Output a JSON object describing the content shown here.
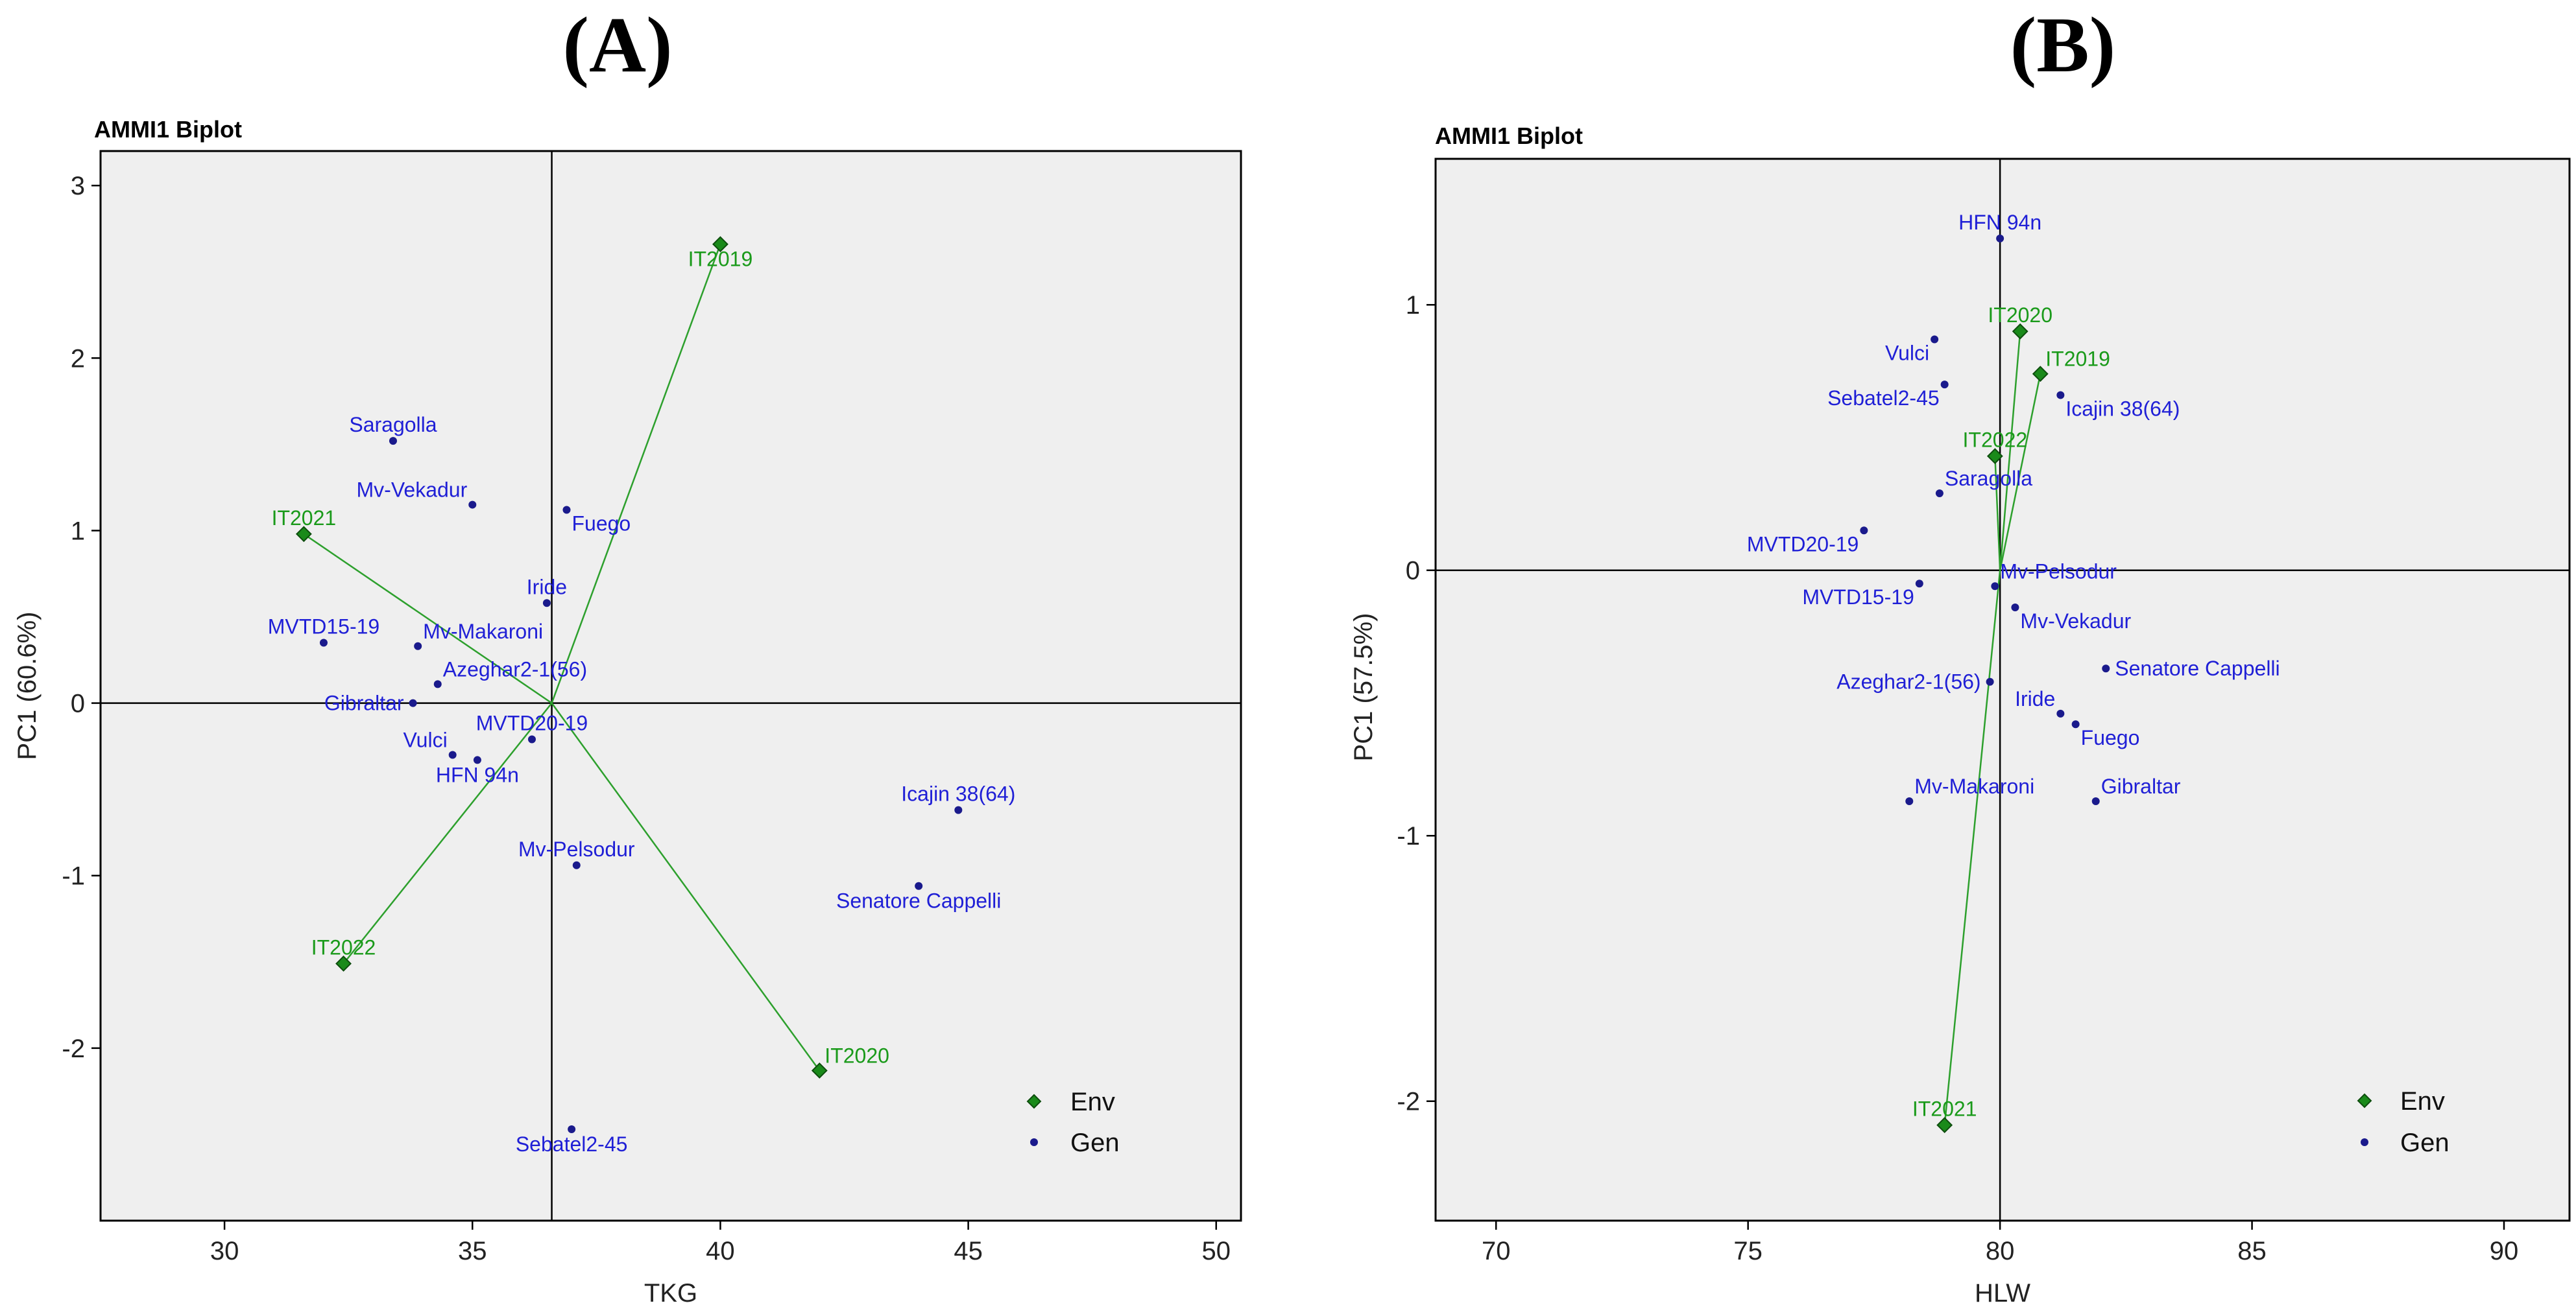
{
  "chart_data": [
    {
      "type": "scatter",
      "panel_label": "(A)",
      "title": "AMMI1 Biplot",
      "xlabel": "TKG",
      "ylabel": "PC1 (60.6%)",
      "xlim": [
        27.5,
        50.5
      ],
      "ylim": [
        -3.0,
        3.2
      ],
      "xticks": [
        30,
        35,
        40,
        45,
        50
      ],
      "yticks": [
        -2,
        -1,
        0,
        1,
        2,
        3
      ],
      "origin": [
        36.6,
        0
      ],
      "legend_position": "bottom-right",
      "legend": [
        {
          "name": "Env",
          "color": "#1a8a1a",
          "shape": "diamond"
        },
        {
          "name": "Gen",
          "color": "#1a1a8c",
          "shape": "dot"
        }
      ],
      "env": [
        {
          "name": "IT2019",
          "x": 40.0,
          "y": 2.66,
          "label_pos": "below"
        },
        {
          "name": "IT2021",
          "x": 31.6,
          "y": 0.98,
          "label_pos": "above"
        },
        {
          "name": "IT2022",
          "x": 32.4,
          "y": -1.51,
          "label_pos": "above"
        },
        {
          "name": "IT2020",
          "x": 42.0,
          "y": -2.13,
          "label_pos": "above-right"
        }
      ],
      "gen": [
        {
          "name": "Saragolla",
          "x": 33.4,
          "y": 1.52,
          "label_pos": "above"
        },
        {
          "name": "Mv-Vekadur",
          "x": 35.0,
          "y": 1.15,
          "label_pos": "above-left"
        },
        {
          "name": "Fuego",
          "x": 36.9,
          "y": 1.12,
          "label_pos": "below-right"
        },
        {
          "name": "Iride",
          "x": 36.5,
          "y": 0.58,
          "label_pos": "above"
        },
        {
          "name": "MVTD15-19",
          "x": 32.0,
          "y": 0.35,
          "label_pos": "above"
        },
        {
          "name": "Mv-Makaroni",
          "x": 33.9,
          "y": 0.33,
          "label_pos": "above-right"
        },
        {
          "name": "Azeghar2-1(56)",
          "x": 34.3,
          "y": 0.11,
          "label_pos": "above-right"
        },
        {
          "name": "Gibraltar",
          "x": 33.8,
          "y": 0.0,
          "label_pos": "left"
        },
        {
          "name": "MVTD20-19",
          "x": 36.2,
          "y": -0.21,
          "label_pos": "above"
        },
        {
          "name": "Vulci",
          "x": 34.6,
          "y": -0.3,
          "label_pos": "above-left"
        },
        {
          "name": "HFN 94n",
          "x": 35.1,
          "y": -0.33,
          "label_pos": "below"
        },
        {
          "name": "Icajin 38(64)",
          "x": 44.8,
          "y": -0.62,
          "label_pos": "above"
        },
        {
          "name": "Mv-Pelsodur",
          "x": 37.1,
          "y": -0.94,
          "label_pos": "above"
        },
        {
          "name": "Senatore Cappelli",
          "x": 44.0,
          "y": -1.06,
          "label_pos": "below"
        },
        {
          "name": "Sebatel2-45",
          "x": 37.0,
          "y": -2.47,
          "label_pos": "below"
        }
      ]
    },
    {
      "type": "scatter",
      "panel_label": "(B)",
      "title": "AMMI1 Biplot",
      "xlabel": "HLW",
      "ylabel": "PC1 (57.5%)",
      "xlim": [
        68.8,
        91.3
      ],
      "ylim": [
        -2.45,
        1.55
      ],
      "xticks": [
        70,
        75,
        80,
        85,
        90
      ],
      "yticks": [
        -2,
        -1,
        0,
        1
      ],
      "origin": [
        80.0,
        0
      ],
      "legend_position": "bottom-right",
      "legend": [
        {
          "name": "Env",
          "color": "#1a8a1a",
          "shape": "diamond"
        },
        {
          "name": "Gen",
          "color": "#1a1a8c",
          "shape": "dot"
        }
      ],
      "env": [
        {
          "name": "IT2020",
          "x": 80.4,
          "y": 0.9,
          "label_pos": "above"
        },
        {
          "name": "IT2019",
          "x": 80.8,
          "y": 0.74,
          "label_pos": "above-right"
        },
        {
          "name": "IT2022",
          "x": 79.9,
          "y": 0.43,
          "label_pos": "above"
        },
        {
          "name": "IT2021",
          "x": 78.9,
          "y": -2.09,
          "label_pos": "above"
        }
      ],
      "gen": [
        {
          "name": "HFN 94n",
          "x": 80.0,
          "y": 1.25,
          "label_pos": "above"
        },
        {
          "name": "Vulci",
          "x": 78.7,
          "y": 0.87,
          "label_pos": "below-left"
        },
        {
          "name": "Sebatel2-45",
          "x": 78.9,
          "y": 0.7,
          "label_pos": "below-left"
        },
        {
          "name": "Icajin 38(64)",
          "x": 81.2,
          "y": 0.66,
          "label_pos": "below-right"
        },
        {
          "name": "Saragolla",
          "x": 78.8,
          "y": 0.29,
          "label_pos": "above-right"
        },
        {
          "name": "MVTD20-19",
          "x": 77.3,
          "y": 0.15,
          "label_pos": "below-left"
        },
        {
          "name": "Mv-Pelsodur",
          "x": 79.9,
          "y": -0.06,
          "label_pos": "above-right"
        },
        {
          "name": "MVTD15-19",
          "x": 78.4,
          "y": -0.05,
          "label_pos": "below-left"
        },
        {
          "name": "Mv-Vekadur",
          "x": 80.3,
          "y": -0.14,
          "label_pos": "below-right"
        },
        {
          "name": "Senatore Cappelli",
          "x": 82.1,
          "y": -0.37,
          "label_pos": "right"
        },
        {
          "name": "Azeghar2-1(56)",
          "x": 79.8,
          "y": -0.42,
          "label_pos": "left"
        },
        {
          "name": "Iride",
          "x": 81.2,
          "y": -0.54,
          "label_pos": "above-left"
        },
        {
          "name": "Fuego",
          "x": 81.5,
          "y": -0.58,
          "label_pos": "below-right"
        },
        {
          "name": "Gibraltar",
          "x": 81.9,
          "y": -0.87,
          "label_pos": "above-right"
        },
        {
          "name": "Mv-Makaroni",
          "x": 78.2,
          "y": -0.87,
          "label_pos": "above-right"
        }
      ]
    }
  ]
}
